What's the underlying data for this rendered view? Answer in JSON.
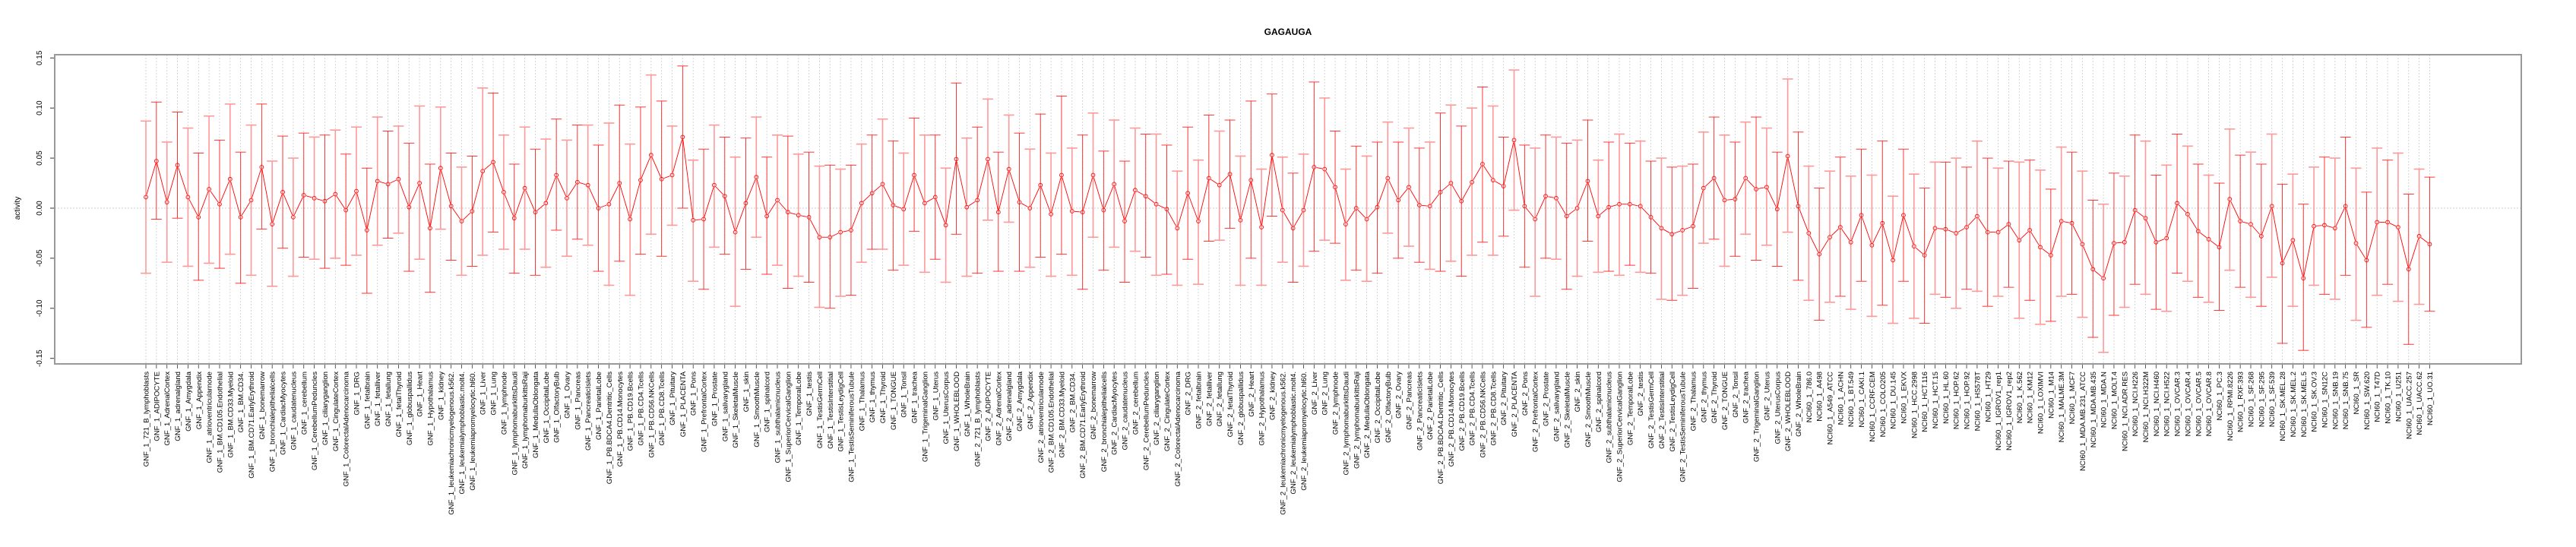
{
  "chart_data": {
    "type": "line",
    "title": "GAGAUGA",
    "xlabel": "",
    "ylabel": "activity",
    "ylim": [
      -0.15,
      0.15
    ],
    "yticks": [
      "-0.15",
      "-0.10",
      "-0.05",
      "0.00",
      "0.05",
      "0.10",
      "0.15"
    ],
    "ytick_values": [
      -0.15,
      -0.1,
      -0.05,
      0.0,
      0.05,
      0.1,
      0.15
    ],
    "grid": "vertical dotted per category, horizontal dotted at 0",
    "colors": {
      "line": "#ff0000",
      "errorbar_light": "#ff9999",
      "errorbar_dark": "#ff2020",
      "grid": "#cccccc",
      "axis": "#999999"
    },
    "categories": [
      "GNF_1_721_B_lymphoblasts",
      "GNF_1_ADIPOCYTE",
      "GNF_1_AdrenalCortex",
      "GNF_1_adrenalgland",
      "GNF_1_Amygdala",
      "GNF_1_Appendix",
      "GNF_1_atrioventricularnode",
      "GNF_1_BM.CD105.Endothelial",
      "GNF_1_BM.CD33.Myeloid",
      "GNF_1_BM.CD34.",
      "GNF_1_BM.CD71.EarlyErythroid",
      "GNF_1_bonemarrow",
      "GNF_1_bronchialepithelialcells",
      "GNF_1_CardiacMyocytes",
      "GNF_1_caudatenucleus",
      "GNF_1_cerebellum",
      "GNF_1_CerebellumPeduncles",
      "GNF_1_ciliaryganglion",
      "GNF_1_CingulateCortex",
      "GNF_1_ColorectalAdenocarcinoma",
      "GNF_1_DRG",
      "GNF_1_fetalbrain",
      "GNF_1_fetalliver",
      "GNF_1_fetallung",
      "GNF_1_fetalThyroid",
      "GNF_1_globuspallidus",
      "GNF_1_Heart",
      "GNF_1_Hypothalamus",
      "GNF_1_kidney",
      "GNF_1_leukemiachronicmyelogenous.k562.",
      "GNF_1_leukemialymphoblastic.molt4.",
      "GNF_1_leukemiapromyelocytic.hl60.",
      "GNF_1_Liver",
      "GNF_1_Lung",
      "GNF_1_lymphnode",
      "GNF_1_lymphomaburkittsDaudi",
      "GNF_1_lymphomaburkittsRaji",
      "GNF_1_MedullaOblongata",
      "GNF_1_OccipitalLobe",
      "GNF_1_OlfactoryBulb",
      "GNF_1_Ovary",
      "GNF_1_Pancreas",
      "GNF_1_PancreaticIslets",
      "GNF_1_ParietalLobe",
      "GNF_1_PB.BDCA4.Dentritic_Cells",
      "GNF_1_PB.CD14.Monocytes",
      "GNF_1_PB.CD19.Bcells",
      "GNF_1_PB.CD4.Tcells",
      "GNF_1_PB.CD56.NKCells",
      "GNF_1_PB.CD8.Tcells",
      "GNF_1_Pituitary",
      "GNF_1_PLACENTA",
      "GNF_1_Pons",
      "GNF_1_PrefrontalCortex",
      "GNF_1_Prostate",
      "GNF_1_salivarygland",
      "GNF_1_SkeletalMuscle",
      "GNF_1_skin",
      "GNF_1_SmoothMuscle",
      "GNF_1_spinalcord",
      "GNF_1_subthalamicnucleus",
      "GNF_1_SuperiorCervicalGanglion",
      "GNF_1_TemporalLobe",
      "GNF_1_testis",
      "GNF_1_TestisGermCell",
      "GNF_1_TestisInterstitial",
      "GNF_1_TestisLeydigCell",
      "GNF_1_TestisSeminiferousTubule",
      "GNF_1_Thalamus",
      "GNF_1_thymus",
      "GNF_1_Thyroid",
      "GNF_1_TONGUE",
      "GNF_1_Tonsil",
      "GNF_1_trachea",
      "GNF_1_TrigeminalGanglion",
      "GNF_1_Uterus",
      "GNF_1_UterusCorpus",
      "GNF_1_WHOLEBLOOD",
      "GNF_1_WholeBrain",
      "GNF_2_721_B_lymphoblasts",
      "GNF_2_ADIPOCYTE",
      "GNF_2_AdrenalCortex",
      "GNF_2_adrenalgland",
      "GNF_2_Amygdala",
      "GNF_2_Appendix",
      "GNF_2_atrioventricularnode",
      "GNF_2_BM.CD105.Endothelial",
      "GNF_2_BM.CD33.Myeloid",
      "GNF_2_BM.CD34.",
      "GNF_2_BM.CD71.EarlyErythroid",
      "GNF_2_bonemarrow",
      "GNF_2_bronchialepithelialcells",
      "GNF_2_CardiacMyocytes",
      "GNF_2_caudatenucleus",
      "GNF_2_cerebellum",
      "GNF_2_CerebellumPeduncles",
      "GNF_2_ciliaryganglion",
      "GNF_2_CingulateCortex",
      "GNF_2_ColorectalAdenocarcinoma",
      "GNF_2_DRG",
      "GNF_2_fetalbrain",
      "GNF_2_fetalliver",
      "GNF_2_fetallung",
      "GNF_2_fetalThyroid",
      "GNF_2_globuspallidus",
      "GNF_2_Heart",
      "GNF_2_Hypothalamus",
      "GNF_2_kidney",
      "GNF_2_leukemiachronicmyelogenous.k562.",
      "GNF_2_leukemialymphoblastic.molt4.",
      "GNF_2_leukemiapromyelocytic.hl60.",
      "GNF_2_Liver",
      "GNF_2_Lung",
      "GNF_2_lymphnode",
      "GNF_2_lymphomaburkittsDaudi",
      "GNF_2_lymphomaburkittsRaji",
      "GNF_2_MedullaOblongata",
      "GNF_2_OccipitalLobe",
      "GNF_2_OlfactoryBulb",
      "GNF_2_Ovary",
      "GNF_2_Pancreas",
      "GNF_2_PancreaticIslets",
      "GNF_2_ParietalLobe",
      "GNF_2_PB.BDCA4.Dentritic_Cells",
      "GNF_2_PB.CD14.Monocytes",
      "GNF_2_PB.CD19.Bcells",
      "GNF_2_PB.CD4.Tcells",
      "GNF_2_PB.CD56.NKCells",
      "GNF_2_PB.CD8.Tcells",
      "GNF_2_Pituitary",
      "GNF_2_PLACENTA",
      "GNF_2_Pons",
      "GNF_2_PrefrontalCortex",
      "GNF_2_Prostate",
      "GNF_2_salivarygland",
      "GNF_2_SkeletalMuscle",
      "GNF_2_skin",
      "GNF_2_SmoothMuscle",
      "GNF_2_spinalcord",
      "GNF_2_subthalamicnucleus",
      "GNF_2_SuperiorCervicalGanglion",
      "GNF_2_TemporalLobe",
      "GNF_2_testis",
      "GNF_2_TestisGermCell",
      "GNF_2_TestisInterstitial",
      "GNF_2_TestisLeydigCell",
      "GNF_2_TestisSeminiferousTubule",
      "GNF_2_Thalamus",
      "GNF_2_thymus",
      "GNF_2_Thyroid",
      "GNF_2_TONGUE",
      "GNF_2_Tonsil",
      "GNF_2_trachea",
      "GNF_2_TrigeminalGanglion",
      "GNF_2_Uterus",
      "GNF_2_UterusCorpus",
      "GNF_2_WHOLEBLOOD",
      "GNF_2_WholeBrain",
      "NCI60_1_786.0",
      "NCI60_1_A498",
      "NCI60_1_A549_ATCC",
      "NCI60_1_ACHN",
      "NCI60_1_BT.549",
      "NCI60_1_CAKI.1",
      "NCI60_1_CCRF.CEM",
      "NCI60_1_COLO205",
      "NCI60_1_DU.145",
      "NCI60_1_EKVX",
      "NCI60_1_HCC.2998",
      "NCI60_1_HCT.116",
      "NCI60_1_HCT.15",
      "NCI60_1_HL.60",
      "NCI60_1_HOP.62",
      "NCI60_1_HOP.92",
      "NCI60_1_HS578T",
      "NCI60_1_HT29",
      "NCI60_1_IGROV1_rep1",
      "NCI60_1_IGROV1_rep2",
      "NCI60_1_K.562",
      "NCI60_1_KM12",
      "NCI60_1_LOXIMVI",
      "NCI60_1_M14",
      "NCI60_1_MALME.3M",
      "NCI60_1_MCF7",
      "NCI60_1_MDA.MB.231_ATCC",
      "NCI60_1_MDA.MB.435",
      "NCI60_1_MDA.N",
      "NCI60_1_MOLT.4",
      "NCI60_1_NCI.ADR.RES",
      "NCI60_1_NCI.H226",
      "NCI60_1_NCI.H322M",
      "NCI60_1_NCI.H460",
      "NCI60_1_NCI.H522",
      "NCI60_1_OVCAR.3",
      "NCI60_1_OVCAR.4",
      "NCI60_1_OVCAR.5",
      "NCI60_1_OVCAR.8",
      "NCI60_1_PC.3",
      "NCI60_1_RPMI.8226",
      "NCI60_1_RXF.393",
      "NCI60_1_SF.268",
      "NCI60_1_SF.295",
      "NCI60_1_SF.539",
      "NCI60_1_SK.MEL.28",
      "NCI60_1_SK.MEL.2",
      "NCI60_1_SK.MEL.5",
      "NCI60_1_SK.OV.3",
      "NCI60_1_SN12C",
      "NCI60_1_SNB.19",
      "NCI60_1_SNB.75",
      "NCI60_1_SR",
      "NCI60_1_SW.620",
      "NCI60_1_T47D",
      "NCI60_1_TK.10",
      "NCI60_1_U251",
      "NCI60_1_UACC.257",
      "NCI60_1_UACC.62",
      "NCI60_1_UO.31"
    ],
    "series": [
      {
        "name": "mean",
        "values": [
          0.011,
          0.047,
          0.006,
          0.043,
          0.011,
          -0.009,
          0.019,
          0.004,
          0.029,
          -0.009,
          0.008,
          0.041,
          -0.016,
          0.016,
          -0.009,
          0.013,
          0.01,
          0.007,
          0.014,
          -0.002,
          0.017,
          -0.022,
          0.027,
          0.024,
          0.029,
          0.001,
          0.025,
          -0.02,
          0.04,
          0.002,
          -0.013,
          -0.003,
          0.037,
          0.046,
          0.016,
          -0.01,
          0.02,
          -0.004,
          0.005,
          0.033,
          0.01,
          0.026,
          0.023,
          0.0,
          0.004,
          0.025,
          -0.011,
          0.028,
          0.053,
          0.029,
          0.033,
          0.071,
          -0.012,
          -0.011,
          0.023,
          0.012,
          -0.024,
          0.005,
          0.031,
          -0.008,
          0.008,
          -0.004,
          -0.007,
          -0.009,
          -0.029,
          -0.029,
          -0.024,
          -0.022,
          0.005,
          0.015,
          0.024,
          0.003,
          -0.001,
          0.033,
          0.005,
          0.011,
          -0.017,
          0.049,
          0.001,
          0.008,
          0.049,
          -0.004,
          0.039,
          0.006,
          0.0,
          0.023,
          -0.006,
          0.033,
          -0.003,
          -0.004,
          0.033,
          -0.002,
          0.024,
          -0.013,
          0.018,
          0.012,
          0.004,
          -0.001,
          -0.02,
          0.015,
          -0.013,
          0.03,
          0.023,
          0.034,
          -0.012,
          0.028,
          -0.019,
          0.053,
          -0.002,
          -0.02,
          -0.002,
          0.041,
          0.039,
          0.021,
          -0.016,
          0.0,
          -0.011,
          0.001,
          0.03,
          0.008,
          0.021,
          0.003,
          0.002,
          0.016,
          0.025,
          0.007,
          0.026,
          0.044,
          0.028,
          0.022,
          0.068,
          0.002,
          -0.011,
          0.012,
          0.01,
          -0.008,
          0.0,
          0.027,
          -0.008,
          0.001,
          0.004,
          0.004,
          0.002,
          -0.009,
          -0.02,
          -0.026,
          -0.022,
          -0.018,
          0.02,
          0.03,
          0.008,
          0.009,
          0.03,
          0.019,
          0.021,
          -0.001,
          0.052,
          0.002,
          -0.025,
          -0.046,
          -0.029,
          -0.019,
          -0.034,
          -0.007,
          -0.037,
          -0.015,
          -0.052,
          -0.007,
          -0.038,
          -0.047,
          -0.02,
          -0.021,
          -0.025,
          -0.019,
          -0.008,
          -0.024,
          -0.024,
          -0.016,
          -0.032,
          -0.022,
          -0.039,
          -0.047,
          -0.013,
          -0.015,
          -0.036,
          -0.061,
          -0.07,
          -0.035,
          -0.034,
          -0.002,
          -0.01,
          -0.034,
          -0.03,
          0.005,
          -0.006,
          -0.023,
          -0.031,
          -0.039,
          0.009,
          -0.013,
          -0.016,
          -0.028,
          0.002,
          -0.055,
          -0.032,
          -0.07,
          -0.018,
          -0.017,
          -0.02,
          0.002,
          -0.035,
          -0.052,
          -0.014,
          -0.014,
          -0.019,
          -0.061,
          -0.028,
          -0.036
        ]
      },
      {
        "name": "upper",
        "values": [
          0.087,
          0.106,
          0.066,
          0.096,
          0.08,
          0.055,
          0.092,
          0.068,
          0.104,
          0.056,
          0.083,
          0.104,
          0.047,
          0.072,
          0.05,
          0.075,
          0.071,
          0.073,
          0.078,
          0.054,
          0.081,
          0.04,
          0.091,
          0.077,
          0.082,
          0.065,
          0.102,
          0.044,
          0.101,
          0.055,
          0.041,
          0.052,
          0.12,
          0.115,
          0.073,
          0.044,
          0.081,
          0.059,
          0.069,
          0.089,
          0.068,
          0.083,
          0.083,
          0.063,
          0.085,
          0.103,
          0.064,
          0.101,
          0.133,
          0.107,
          0.082,
          0.142,
          0.048,
          0.059,
          0.083,
          0.071,
          0.051,
          0.07,
          0.091,
          0.051,
          0.073,
          0.072,
          0.054,
          0.056,
          0.042,
          0.043,
          0.039,
          0.043,
          0.064,
          0.073,
          0.089,
          0.067,
          0.055,
          0.09,
          0.073,
          0.073,
          0.04,
          0.125,
          0.07,
          0.081,
          0.109,
          0.056,
          0.093,
          0.075,
          0.059,
          0.094,
          0.055,
          0.112,
          0.06,
          0.073,
          0.095,
          0.057,
          0.088,
          0.047,
          0.08,
          0.074,
          0.074,
          0.063,
          0.037,
          0.081,
          0.048,
          0.093,
          0.077,
          0.088,
          0.052,
          0.107,
          0.039,
          0.114,
          0.051,
          0.035,
          0.054,
          0.126,
          0.11,
          0.077,
          0.039,
          0.062,
          0.052,
          0.066,
          0.086,
          0.066,
          0.08,
          0.06,
          0.066,
          0.095,
          0.103,
          0.082,
          0.1,
          0.121,
          0.102,
          0.071,
          0.138,
          0.063,
          0.06,
          0.073,
          0.071,
          0.065,
          0.068,
          0.088,
          0.048,
          0.066,
          0.074,
          0.065,
          0.067,
          0.047,
          0.05,
          0.041,
          0.042,
          0.044,
          0.076,
          0.091,
          0.073,
          0.066,
          0.086,
          0.091,
          0.08,
          0.056,
          0.129,
          0.076,
          0.042,
          0.02,
          0.037,
          0.051,
          0.032,
          0.059,
          0.033,
          0.067,
          0.012,
          0.059,
          0.034,
          0.02,
          0.046,
          0.046,
          0.05,
          0.041,
          0.067,
          0.05,
          0.04,
          0.047,
          0.046,
          0.048,
          0.038,
          0.019,
          0.061,
          0.056,
          0.037,
          0.008,
          0.004,
          0.035,
          0.032,
          0.073,
          0.067,
          0.033,
          0.043,
          0.074,
          0.062,
          0.044,
          0.033,
          0.025,
          0.079,
          0.053,
          0.056,
          0.044,
          0.074,
          0.024,
          0.034,
          0.004,
          0.041,
          0.051,
          0.05,
          0.071,
          0.04,
          0.016,
          0.06,
          0.048,
          0.055,
          0.014,
          0.039,
          0.031
        ]
      },
      {
        "name": "lower",
        "values": [
          -0.065,
          -0.011,
          -0.054,
          -0.01,
          -0.058,
          -0.072,
          -0.055,
          -0.06,
          -0.046,
          -0.075,
          -0.067,
          -0.021,
          -0.078,
          -0.04,
          -0.068,
          -0.049,
          -0.051,
          -0.06,
          -0.05,
          -0.057,
          -0.047,
          -0.085,
          -0.037,
          -0.03,
          -0.025,
          -0.063,
          -0.051,
          -0.084,
          -0.021,
          -0.052,
          -0.067,
          -0.058,
          -0.047,
          -0.024,
          -0.041,
          -0.065,
          -0.041,
          -0.067,
          -0.059,
          -0.022,
          -0.048,
          -0.031,
          -0.037,
          -0.063,
          -0.077,
          -0.053,
          -0.087,
          -0.046,
          -0.026,
          -0.048,
          -0.017,
          0.0,
          -0.073,
          -0.081,
          -0.039,
          -0.046,
          -0.098,
          -0.061,
          -0.029,
          -0.066,
          -0.057,
          -0.08,
          -0.068,
          -0.074,
          -0.099,
          -0.1,
          -0.088,
          -0.087,
          -0.054,
          -0.041,
          -0.041,
          -0.062,
          -0.057,
          -0.023,
          -0.064,
          -0.051,
          -0.074,
          -0.026,
          -0.068,
          -0.065,
          -0.012,
          -0.063,
          -0.014,
          -0.063,
          -0.059,
          -0.049,
          -0.068,
          -0.046,
          -0.067,
          -0.081,
          -0.029,
          -0.062,
          -0.039,
          -0.074,
          -0.043,
          -0.049,
          -0.067,
          -0.066,
          -0.077,
          -0.051,
          -0.076,
          -0.033,
          -0.032,
          -0.02,
          -0.077,
          -0.05,
          -0.077,
          -0.008,
          -0.054,
          -0.074,
          -0.058,
          -0.043,
          -0.032,
          -0.035,
          -0.072,
          -0.062,
          -0.073,
          -0.065,
          -0.025,
          -0.05,
          -0.038,
          -0.054,
          -0.061,
          -0.063,
          -0.053,
          -0.068,
          -0.047,
          -0.034,
          -0.047,
          -0.028,
          -0.002,
          -0.059,
          -0.088,
          -0.05,
          -0.051,
          -0.081,
          -0.068,
          -0.033,
          -0.064,
          -0.063,
          -0.067,
          -0.057,
          -0.064,
          -0.065,
          -0.091,
          -0.092,
          -0.087,
          -0.08,
          -0.035,
          -0.031,
          -0.058,
          -0.048,
          -0.026,
          -0.052,
          -0.037,
          -0.058,
          -0.024,
          -0.072,
          -0.092,
          -0.112,
          -0.094,
          -0.088,
          -0.101,
          -0.073,
          -0.108,
          -0.097,
          -0.115,
          -0.073,
          -0.11,
          -0.115,
          -0.086,
          -0.089,
          -0.1,
          -0.081,
          -0.083,
          -0.098,
          -0.088,
          -0.079,
          -0.11,
          -0.092,
          -0.116,
          -0.113,
          -0.088,
          -0.086,
          -0.109,
          -0.129,
          -0.144,
          -0.107,
          -0.099,
          -0.076,
          -0.086,
          -0.101,
          -0.103,
          -0.065,
          -0.073,
          -0.089,
          -0.094,
          -0.102,
          -0.062,
          -0.079,
          -0.089,
          -0.098,
          -0.069,
          -0.135,
          -0.098,
          -0.142,
          -0.077,
          -0.086,
          -0.091,
          -0.067,
          -0.112,
          -0.119,
          -0.087,
          -0.076,
          -0.093,
          -0.136,
          -0.096,
          -0.103
        ]
      }
    ]
  }
}
